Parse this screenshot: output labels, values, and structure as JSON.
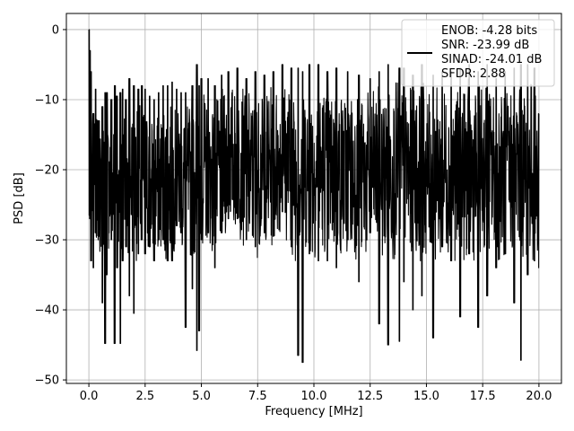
{
  "chart_data": {
    "type": "line",
    "title": "",
    "xlabel": "Frequency [MHz]",
    "ylabel": "PSD [dB]",
    "xlim": [
      -1.0,
      21.0
    ],
    "ylim": [
      -50.5,
      2.3
    ],
    "xticks": [
      0.0,
      2.5,
      5.0,
      7.5,
      10.0,
      12.5,
      15.0,
      17.5,
      20.0
    ],
    "xtick_labels": [
      "0.0",
      "2.5",
      "5.0",
      "7.5",
      "10.0",
      "12.5",
      "15.0",
      "17.5",
      "20.0"
    ],
    "yticks": [
      0,
      -10,
      -20,
      -30,
      -40,
      -50
    ],
    "ytick_labels": [
      "0",
      "−10",
      "−20",
      "−30",
      "−40",
      "−50"
    ],
    "grid": true,
    "line_color": "#000000",
    "legend_position": "top-right",
    "legend_lines": [
      "ENOB: -4.28 bits",
      "SNR: -23.99 dB",
      "SINAD: -24.01 dB",
      "SFDR: 2.88"
    ],
    "series": [
      {
        "x": [
          0.0,
          0.05,
          0.1,
          0.2,
          0.3,
          0.45,
          0.6,
          0.72,
          0.8,
          1.0,
          1.15,
          1.25,
          1.4,
          1.5,
          1.65,
          1.8,
          2.0,
          2.2,
          2.35,
          2.5,
          2.7,
          2.9,
          3.1,
          3.3,
          3.5,
          3.7,
          3.9,
          4.1,
          4.3,
          4.6,
          4.8,
          4.9,
          5.0,
          5.3,
          5.6,
          5.9,
          6.2,
          6.6,
          7.0,
          7.4,
          7.8,
          8.2,
          8.6,
          9.0,
          9.3,
          9.5,
          9.8,
          10.2,
          10.6,
          11.0,
          11.5,
          12.0,
          12.5,
          12.9,
          13.3,
          13.8,
          14.0,
          14.4,
          14.8,
          15.3,
          15.7,
          16.1,
          16.5,
          16.9,
          17.3,
          17.7,
          18.1,
          18.5,
          18.9,
          19.2,
          19.5,
          19.8,
          20.0
        ],
        "min": [
          -26.5,
          -27.0,
          -33.0,
          -34.0,
          -29.0,
          -29.5,
          -39.0,
          -44.8,
          -35.0,
          -30.0,
          -44.8,
          -34.0,
          -44.8,
          -33.0,
          -31.0,
          -38.0,
          -40.5,
          -32.0,
          -30.0,
          -32.0,
          -31.0,
          -33.0,
          -30.0,
          -30.0,
          -33.0,
          -33.0,
          -28.0,
          -29.0,
          -42.5,
          -37.0,
          -45.8,
          -43.0,
          -30.0,
          -29.0,
          -34.0,
          -29.0,
          -27.0,
          -27.0,
          -30.0,
          -31.0,
          -29.0,
          -29.5,
          -26.0,
          -31.0,
          -46.5,
          -47.5,
          -32.0,
          -33.0,
          -33.0,
          -34.0,
          -30.0,
          -36.0,
          -29.0,
          -42.0,
          -45.0,
          -44.5,
          -36.0,
          -40.0,
          -38.0,
          -44.0,
          -31.0,
          -33.0,
          -41.0,
          -32.0,
          -42.5,
          -38.0,
          -34.0,
          -32.0,
          -39.0,
          -47.2,
          -35.0,
          -33.0,
          -34.0
        ],
        "max": [
          0.0,
          -3.0,
          -6.0,
          -12.0,
          -8.5,
          -13.0,
          -11.0,
          -9.0,
          -9.0,
          -10.0,
          -8.0,
          -9.5,
          -9.0,
          -8.5,
          -10.0,
          -7.0,
          -8.0,
          -8.5,
          -8.0,
          -8.5,
          -9.5,
          -10.0,
          -9.0,
          -8.0,
          -8.0,
          -7.5,
          -8.5,
          -9.0,
          -9.0,
          -8.0,
          -5.0,
          -8.0,
          -7.0,
          -7.0,
          -8.0,
          -6.5,
          -6.0,
          -5.5,
          -7.0,
          -6.0,
          -6.5,
          -6.0,
          -5.0,
          -5.5,
          -5.5,
          -6.0,
          -5.0,
          -5.0,
          -6.0,
          -5.5,
          -6.0,
          -6.5,
          -7.0,
          -6.0,
          -5.0,
          -5.5,
          -5.5,
          -6.5,
          -5.0,
          -6.5,
          -6.0,
          -6.0,
          -5.5,
          -5.0,
          -6.0,
          -5.0,
          -7.0,
          -6.0,
          -5.5,
          -5.0,
          -5.0,
          -5.5,
          -12.0
        ]
      }
    ]
  }
}
